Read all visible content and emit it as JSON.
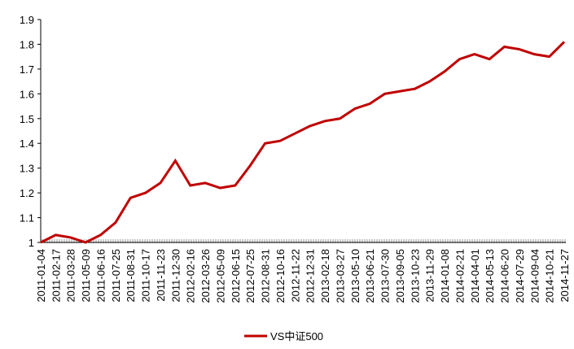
{
  "chart_data": {
    "type": "line",
    "x": [
      "2011-01-04",
      "2011-02-17",
      "2011-03-28",
      "2011-05-09",
      "2011-06-16",
      "2011-07-25",
      "2011-08-31",
      "2011-10-17",
      "2011-11-23",
      "2011-12-30",
      "2012-02-16",
      "2012-03-26",
      "2012-05-09",
      "2012-06-15",
      "2012-07-25",
      "2012-08-31",
      "2012-10-16",
      "2012-11-22",
      "2012-12-31",
      "2013-02-18",
      "2013-03-27",
      "2013-05-10",
      "2013-06-21",
      "2013-07-30",
      "2013-09-05",
      "2013-10-23",
      "2013-11-29",
      "2014-01-08",
      "2014-02-21",
      "2014-04-01",
      "2014-05-13",
      "2014-06-20",
      "2014-07-29",
      "2014-09-04",
      "2014-10-21",
      "2014-11-27"
    ],
    "series": [
      {
        "name": "VS中证500",
        "color": "#c00000",
        "values": [
          1.0,
          1.03,
          1.02,
          1.0,
          1.03,
          1.08,
          1.18,
          1.2,
          1.24,
          1.33,
          1.23,
          1.24,
          1.22,
          1.23,
          1.31,
          1.4,
          1.41,
          1.44,
          1.47,
          1.49,
          1.5,
          1.54,
          1.56,
          1.6,
          1.61,
          1.62,
          1.65,
          1.69,
          1.74,
          1.76,
          1.74,
          1.79,
          1.78,
          1.76,
          1.75,
          1.81
        ]
      }
    ],
    "ylim": [
      1,
      1.9
    ],
    "yticks": [
      1,
      1.1,
      1.2,
      1.3,
      1.4,
      1.5,
      1.6,
      1.7,
      1.8,
      1.9
    ],
    "grid": false,
    "legend": "bottom"
  }
}
